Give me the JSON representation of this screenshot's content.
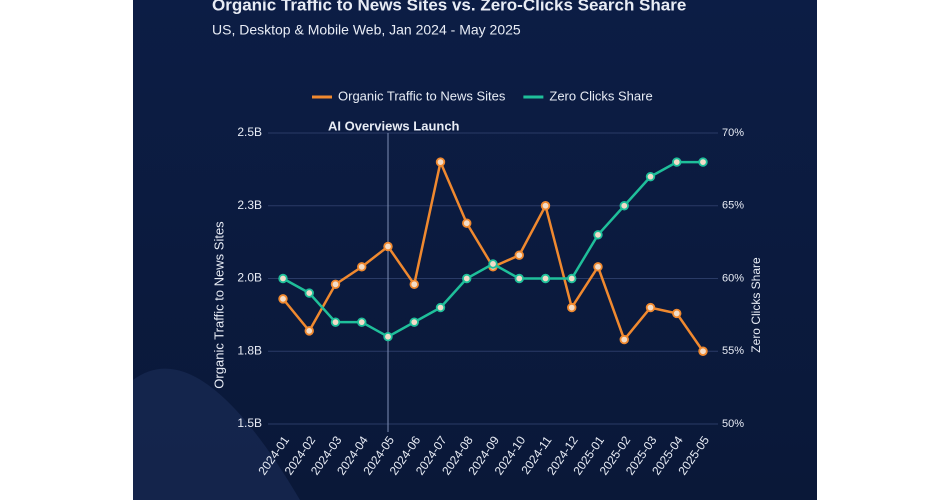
{
  "chart_data": {
    "type": "line",
    "title": "Organic Traffic to News Sites vs. Zero-Clicks Search Share",
    "subtitle": "US, Desktop & Mobile Web, Jan 2024 - May 2025",
    "ylabel": "Organic Traffic to News Sites",
    "y2label": "Zero Clicks Share",
    "annotation": {
      "text": "AI Overviews Launch",
      "x": "2024-05"
    },
    "categories": [
      "2024-01",
      "2024-02",
      "2024-03",
      "2024-04",
      "2024-05",
      "2024-06",
      "2024-07",
      "2024-08",
      "2024-09",
      "2024-10",
      "2024-11",
      "2024-12",
      "2025-01",
      "2025-02",
      "2025-03",
      "2025-04",
      "2025-05"
    ],
    "series": [
      {
        "name": "Organic Traffic to News Sites",
        "color": "#f0892f",
        "values": [
          1.93,
          1.82,
          1.98,
          2.04,
          2.11,
          1.98,
          2.4,
          2.19,
          2.04,
          2.08,
          2.25,
          1.9,
          2.04,
          1.79,
          1.9,
          1.88,
          1.75
        ]
      },
      {
        "name": "Zero Clicks Share",
        "color": "#1fbf9a",
        "axis": "y2",
        "values": [
          60,
          59,
          57,
          57,
          56,
          57,
          58,
          60,
          61,
          60,
          60,
          60,
          63,
          65,
          67,
          68,
          68
        ]
      }
    ],
    "ylim": [
      1.5,
      2.5
    ],
    "yticks": [
      {
        "value": 1.5,
        "label": "1.5B"
      },
      {
        "value": 1.75,
        "label": "1.8B"
      },
      {
        "value": 2.0,
        "label": "2.0B"
      },
      {
        "value": 2.25,
        "label": "2.3B"
      },
      {
        "value": 2.5,
        "label": "2.5B"
      }
    ],
    "y2lim": [
      50,
      70
    ],
    "y2ticks": [
      {
        "value": 50,
        "label": "50%"
      },
      {
        "value": 55,
        "label": "55%"
      },
      {
        "value": 60,
        "label": "60%"
      },
      {
        "value": 65,
        "label": "65%"
      },
      {
        "value": 70,
        "label": "70%"
      }
    ],
    "grid": true,
    "legend": "top"
  }
}
